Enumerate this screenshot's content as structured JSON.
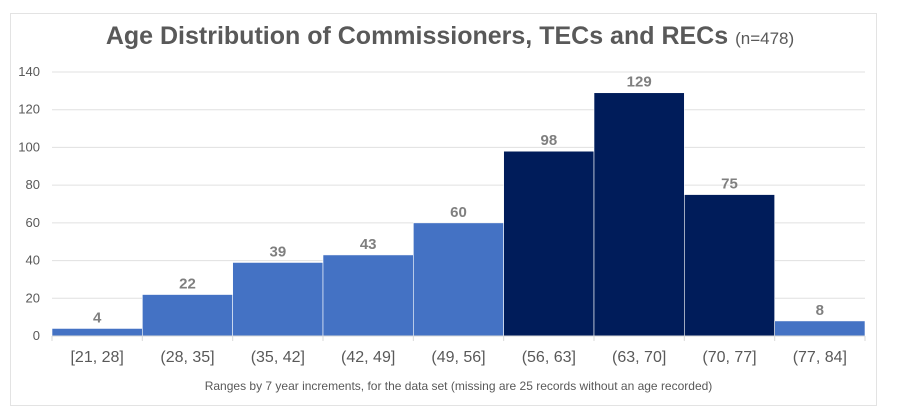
{
  "chart_data": {
    "type": "bar",
    "title": "Age Distribution of Commissioners, TECs and RECs",
    "subtitle": "(n=478)",
    "xlabel": "Ranges by 7 year increments, for the data set (missing are 25 records without an age recorded)",
    "ylabel": "",
    "ylim": [
      0,
      140
    ],
    "yticks": [
      0,
      20,
      40,
      60,
      80,
      100,
      120,
      140
    ],
    "grid": true,
    "categories": [
      "[21, 28]",
      "(28, 35]",
      "(35, 42]",
      "(42, 49]",
      "(49, 56]",
      "(56, 63]",
      "(63, 70]",
      "(70, 77]",
      "(77, 84]"
    ],
    "values": [
      4,
      22,
      39,
      43,
      60,
      98,
      129,
      75,
      8
    ],
    "highlighted": [
      false,
      false,
      false,
      false,
      false,
      true,
      true,
      true,
      false
    ],
    "colors": {
      "normal": "#4472c4",
      "highlight": "#001c5a",
      "grid": "#e0e0e0",
      "text": "#595959",
      "label": "#7f7f7f"
    }
  }
}
